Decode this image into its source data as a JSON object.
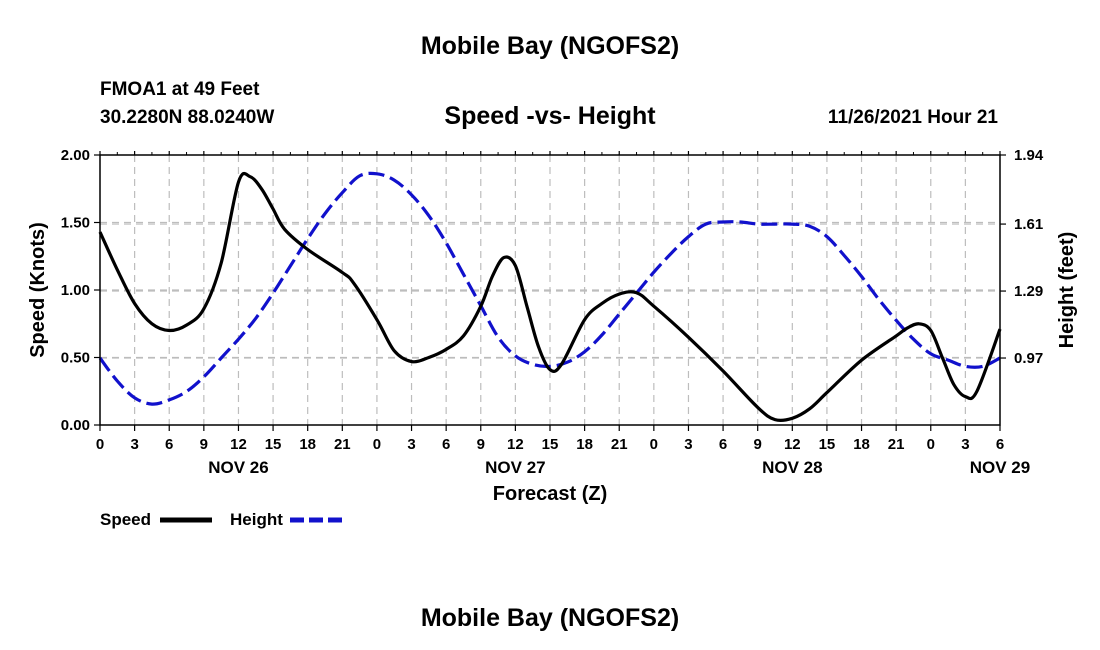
{
  "header": {
    "title": "Mobile Bay (NGOFS2)",
    "station": "FMOA1 at 49 Feet",
    "coords": "30.2280N  88.0240W",
    "timestamp": "11/26/2021 Hour 21",
    "footer_title": "Mobile Bay (NGOFS2)"
  },
  "chart_data": {
    "type": "line",
    "title": "Speed -vs- Height",
    "xlabel": "Forecast (Z)",
    "ylabel": "Speed (Knots)",
    "y2label": "Height (feet)",
    "xlim": [
      0,
      78
    ],
    "ylim": [
      0,
      2.0
    ],
    "y2lim": [
      0.65,
      1.94
    ],
    "grid": true,
    "xticks": [
      0,
      3,
      6,
      9,
      12,
      15,
      18,
      21,
      24,
      27,
      30,
      33,
      36,
      39,
      42,
      45,
      48,
      51,
      54,
      57,
      60,
      63,
      66,
      69,
      72,
      75,
      78
    ],
    "xtick_labels": [
      "0",
      "3",
      "6",
      "9",
      "12",
      "15",
      "18",
      "21",
      "0",
      "3",
      "6",
      "9",
      "12",
      "15",
      "18",
      "21",
      "0",
      "3",
      "6",
      "9",
      "12",
      "15",
      "18",
      "21",
      "0",
      "3",
      "6"
    ],
    "yticks": [
      0.0,
      0.5,
      1.0,
      1.5,
      2.0
    ],
    "ytick_labels": [
      "0.00",
      "0.50",
      "1.00",
      "1.50",
      "2.00"
    ],
    "y2ticks": [
      0.97,
      1.29,
      1.61,
      1.94
    ],
    "y2tick_labels": [
      "0.97",
      "1.29",
      "1.61",
      "1.94"
    ],
    "date_labels": [
      {
        "x": 12,
        "label": "NOV 26"
      },
      {
        "x": 36,
        "label": "NOV 27"
      },
      {
        "x": 60,
        "label": "NOV 28"
      },
      {
        "x": 78,
        "label": "NOV 29"
      }
    ],
    "legend": [
      {
        "name": "Speed",
        "color": "#000000",
        "dash": "solid"
      },
      {
        "name": "Height",
        "color": "#1111cc",
        "dash": "dashed"
      }
    ],
    "series": [
      {
        "name": "Speed",
        "axis": "left",
        "color": "#000000",
        "x": [
          0,
          1.5,
          3,
          4.5,
          6,
          7.5,
          9,
          10.5,
          12,
          13,
          14,
          15,
          16,
          18,
          21,
          22,
          24,
          25.5,
          27,
          28.5,
          30,
          31.5,
          33,
          34,
          35,
          36,
          37,
          38,
          39,
          40,
          42,
          43.5,
          45,
          46.5,
          48,
          51,
          54,
          57,
          58.5,
          60,
          61.5,
          63,
          66,
          69,
          70,
          71,
          72,
          73,
          74,
          75,
          76,
          78
        ],
        "y": [
          1.43,
          1.15,
          0.9,
          0.75,
          0.7,
          0.74,
          0.86,
          1.2,
          1.8,
          1.84,
          1.75,
          1.6,
          1.45,
          1.3,
          1.13,
          1.05,
          0.78,
          0.55,
          0.47,
          0.5,
          0.56,
          0.66,
          0.88,
          1.1,
          1.24,
          1.18,
          0.88,
          0.58,
          0.41,
          0.45,
          0.78,
          0.9,
          0.97,
          0.98,
          0.88,
          0.65,
          0.4,
          0.13,
          0.04,
          0.05,
          0.12,
          0.24,
          0.48,
          0.66,
          0.72,
          0.75,
          0.7,
          0.5,
          0.3,
          0.21,
          0.25,
          0.71
        ]
      },
      {
        "name": "Height",
        "axis": "right",
        "color": "#1111cc",
        "x": [
          0,
          1.5,
          3,
          4.5,
          6,
          7.5,
          9,
          10.5,
          12,
          13.5,
          15,
          16.5,
          18,
          19.5,
          21,
          22.5,
          24,
          25.5,
          27,
          28.5,
          30,
          31.5,
          33,
          34.5,
          36,
          37.5,
          39,
          40.5,
          42,
          43.5,
          45,
          46.5,
          48,
          49.5,
          51,
          52.5,
          54,
          55.5,
          57,
          58.5,
          60,
          61.5,
          63,
          64.5,
          66,
          67.5,
          69,
          70.5,
          72,
          73.5,
          75,
          76.5,
          78
        ],
        "y": [
          0.97,
          0.86,
          0.78,
          0.75,
          0.77,
          0.81,
          0.88,
          0.97,
          1.06,
          1.16,
          1.28,
          1.41,
          1.54,
          1.66,
          1.76,
          1.84,
          1.85,
          1.82,
          1.75,
          1.65,
          1.52,
          1.37,
          1.22,
          1.07,
          0.98,
          0.94,
          0.93,
          0.95,
          1.0,
          1.08,
          1.18,
          1.28,
          1.38,
          1.47,
          1.55,
          1.61,
          1.62,
          1.62,
          1.61,
          1.61,
          1.61,
          1.6,
          1.55,
          1.46,
          1.36,
          1.25,
          1.15,
          1.06,
          0.99,
          0.96,
          0.93,
          0.93,
          0.97
        ]
      }
    ]
  }
}
